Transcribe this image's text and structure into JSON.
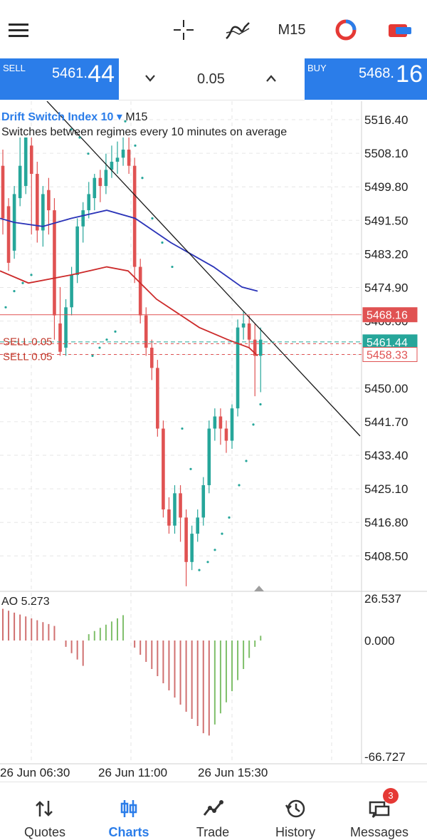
{
  "toolbar": {
    "menu_icon": "hamburger-icon",
    "crosshair_icon": "crosshair-icon",
    "indicators_icon": "indicators-icon",
    "timeframe": "M15",
    "color_icon": "color-scheme-icon",
    "trade_icon": "trade-icon"
  },
  "trade_panel": {
    "sell_label": "SELL",
    "sell_price_small": "5461.",
    "sell_price_big": "44",
    "volume": "0.05",
    "buy_label": "BUY",
    "buy_price_small": "5468.",
    "buy_price_big": "16"
  },
  "chart": {
    "symbol": "Drift Switch Index 10",
    "timeframe": "M15",
    "description": "Switches between regimes every 10 minutes on average",
    "price_labels": [
      "5516.40",
      "5508.10",
      "5499.80",
      "5491.50",
      "5483.20",
      "5474.90",
      "5466.60",
      "5458.33",
      "5450.00",
      "5441.70",
      "5433.40",
      "5425.10",
      "5416.80",
      "5408.50"
    ],
    "ask_label": "5468.16",
    "bid_label": "5461.44",
    "order_label": "5458.33",
    "order_lines": [
      "SELL 0.05",
      "SELL 0.05"
    ],
    "ao_label": "AO 5.273",
    "ao_scale": [
      "26.537",
      "0.000",
      "-66.727"
    ],
    "time_labels": [
      "26 Jun 06:30",
      "26 Jun 11:00",
      "26 Jun 15:30"
    ],
    "colors": {
      "up": "#26a69a",
      "down": "#e05252",
      "ma_fast": "#2a33b8",
      "ma_slow": "#cc2a2a",
      "accent": "#2b7de9"
    }
  },
  "nav": [
    {
      "label": "Quotes",
      "icon": "quotes-icon"
    },
    {
      "label": "Charts",
      "icon": "charts-icon"
    },
    {
      "label": "Trade",
      "icon": "trade-line-icon"
    },
    {
      "label": "History",
      "icon": "history-icon"
    },
    {
      "label": "Messages",
      "icon": "messages-icon",
      "badge": "3"
    }
  ]
}
